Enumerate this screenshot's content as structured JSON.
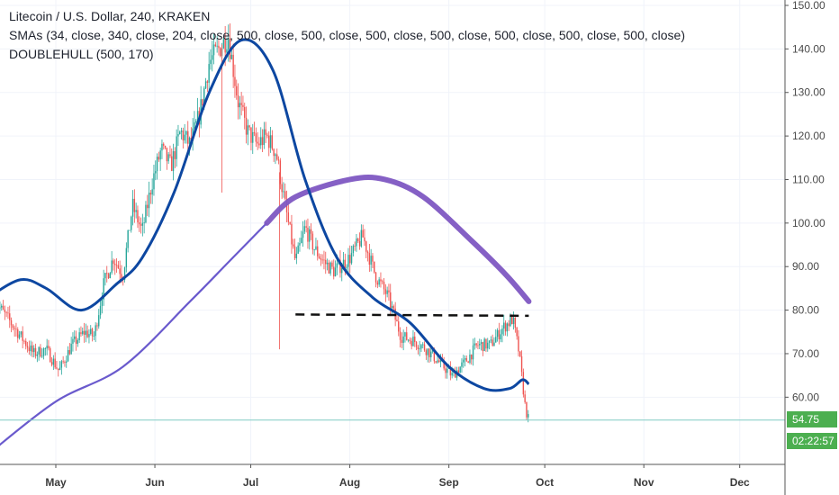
{
  "legend": {
    "title": "Litecoin / U.S. Dollar, 240, KRAKEN",
    "smas": "SMAs (34, close, 340, close, 204, close, 500, close, 500, close, 500, close, 500, close, 500, close, 500, close, 500, close)",
    "doublehull": "DOUBLEHULL (500, 170)"
  },
  "colors": {
    "up": "#26a69a",
    "down": "#ef5350",
    "hull_fast": "#0d47a1",
    "sma_purple": "#6a5acd",
    "hull_slow": "#7e57c2",
    "price_tag": "#4caf50",
    "last_line": "#80cbc4"
  },
  "price_tag": {
    "price": "54.75",
    "countdown": "02:22:57"
  },
  "chart_data": {
    "type": "candlestick",
    "title": "Litecoin / U.S. Dollar, 240, KRAKEN",
    "ylim": [
      45,
      150
    ],
    "y_ticks": [
      "150.00",
      "140.00",
      "130.00",
      "120.00",
      "110.00",
      "100.00",
      "90.00",
      "80.00",
      "70.00",
      "60.00"
    ],
    "x_labels": [
      "May",
      "Jun",
      "Jul",
      "Aug",
      "Sep",
      "Oct",
      "Nov",
      "Dec"
    ],
    "last_price": 54.75,
    "price_path": [
      [
        "Apr 12",
        82
      ],
      [
        "Apr 16",
        78
      ],
      [
        "Apr 20",
        74
      ],
      [
        "Apr 24",
        70
      ],
      [
        "Apr 28",
        71
      ],
      [
        "May 2",
        66
      ],
      [
        "May 6",
        72
      ],
      [
        "May 10",
        75
      ],
      [
        "May 13",
        74
      ],
      [
        "May 16",
        86
      ],
      [
        "May 19",
        92
      ],
      [
        "May 22",
        88
      ],
      [
        "May 25",
        104
      ],
      [
        "May 28",
        98
      ],
      [
        "May 31",
        109
      ],
      [
        "Jun 3",
        117
      ],
      [
        "Jun 6",
        113
      ],
      [
        "Jun 9",
        121
      ],
      [
        "Jun 12",
        118
      ],
      [
        "Jun 15",
        125
      ],
      [
        "Jun 18",
        137
      ],
      [
        "Jun 21",
        140
      ],
      [
        "Jun 24",
        143
      ],
      [
        "Jun 27",
        128
      ],
      [
        "Jun 30",
        121
      ],
      [
        "Jul 3",
        118
      ],
      [
        "Jul 6",
        120
      ],
      [
        "Jul 9",
        116
      ],
      [
        "Jul 12",
        103
      ],
      [
        "Jul 15",
        91
      ],
      [
        "Jul 18",
        99
      ],
      [
        "Jul 21",
        94
      ],
      [
        "Jul 24",
        91
      ],
      [
        "Jul 27",
        89
      ],
      [
        "Aug 1",
        92
      ],
      [
        "Aug 5",
        97
      ],
      [
        "Aug 9",
        88
      ],
      [
        "Aug 13",
        83
      ],
      [
        "Aug 17",
        74
      ],
      [
        "Aug 21",
        73
      ],
      [
        "Aug 25",
        71
      ],
      [
        "Aug 29",
        68
      ],
      [
        "Sep 2",
        65
      ],
      [
        "Sep 6",
        68
      ],
      [
        "Sep 10",
        72
      ],
      [
        "Sep 14",
        72
      ],
      [
        "Sep 18",
        76
      ],
      [
        "Sep 21",
        78
      ],
      [
        "Sep 23",
        70
      ],
      [
        "Sep 25",
        57
      ],
      [
        "Sep 26",
        54.75
      ]
    ],
    "series": [
      {
        "name": "SMAs",
        "points": [
          [
            "Apr 10",
            47
          ],
          [
            "May 1",
            59
          ],
          [
            "May 22",
            67
          ],
          [
            "Jun 12",
            82
          ],
          [
            "Jun 24",
            91
          ],
          [
            "Jul 6",
            100
          ],
          [
            "Jul 15",
            106
          ],
          [
            "Aug 1",
            110
          ],
          [
            "Aug 12",
            110
          ],
          [
            "Aug 24",
            106
          ],
          [
            "Sep 8",
            96
          ],
          [
            "Sep 19",
            88
          ],
          [
            "Sep 26",
            82
          ]
        ]
      },
      {
        "name": "DOUBLEHULL (500, 170)",
        "points": [
          [
            "Apr 10",
            83
          ],
          [
            "Apr 20",
            87
          ],
          [
            "Apr 28",
            85
          ],
          [
            "May 9",
            80
          ],
          [
            "May 20",
            86
          ],
          [
            "May 28",
            92
          ],
          [
            "Jun 7",
            107
          ],
          [
            "Jun 18",
            130
          ],
          [
            "Jun 28",
            142
          ],
          [
            "Jul 8",
            135
          ],
          [
            "Jul 18",
            110
          ],
          [
            "Jul 28",
            92
          ],
          [
            "Aug 8",
            83
          ],
          [
            "Aug 20",
            77
          ],
          [
            "Sep 1",
            67
          ],
          [
            "Sep 12",
            62
          ],
          [
            "Sep 20",
            62
          ],
          [
            "Sep 24",
            64
          ],
          [
            "Sep 26",
            63
          ]
        ]
      },
      {
        "name": "Horizontal line",
        "points": [
          [
            "Jul 15",
            79
          ],
          [
            "Sep 26",
            78.7
          ]
        ]
      }
    ]
  }
}
